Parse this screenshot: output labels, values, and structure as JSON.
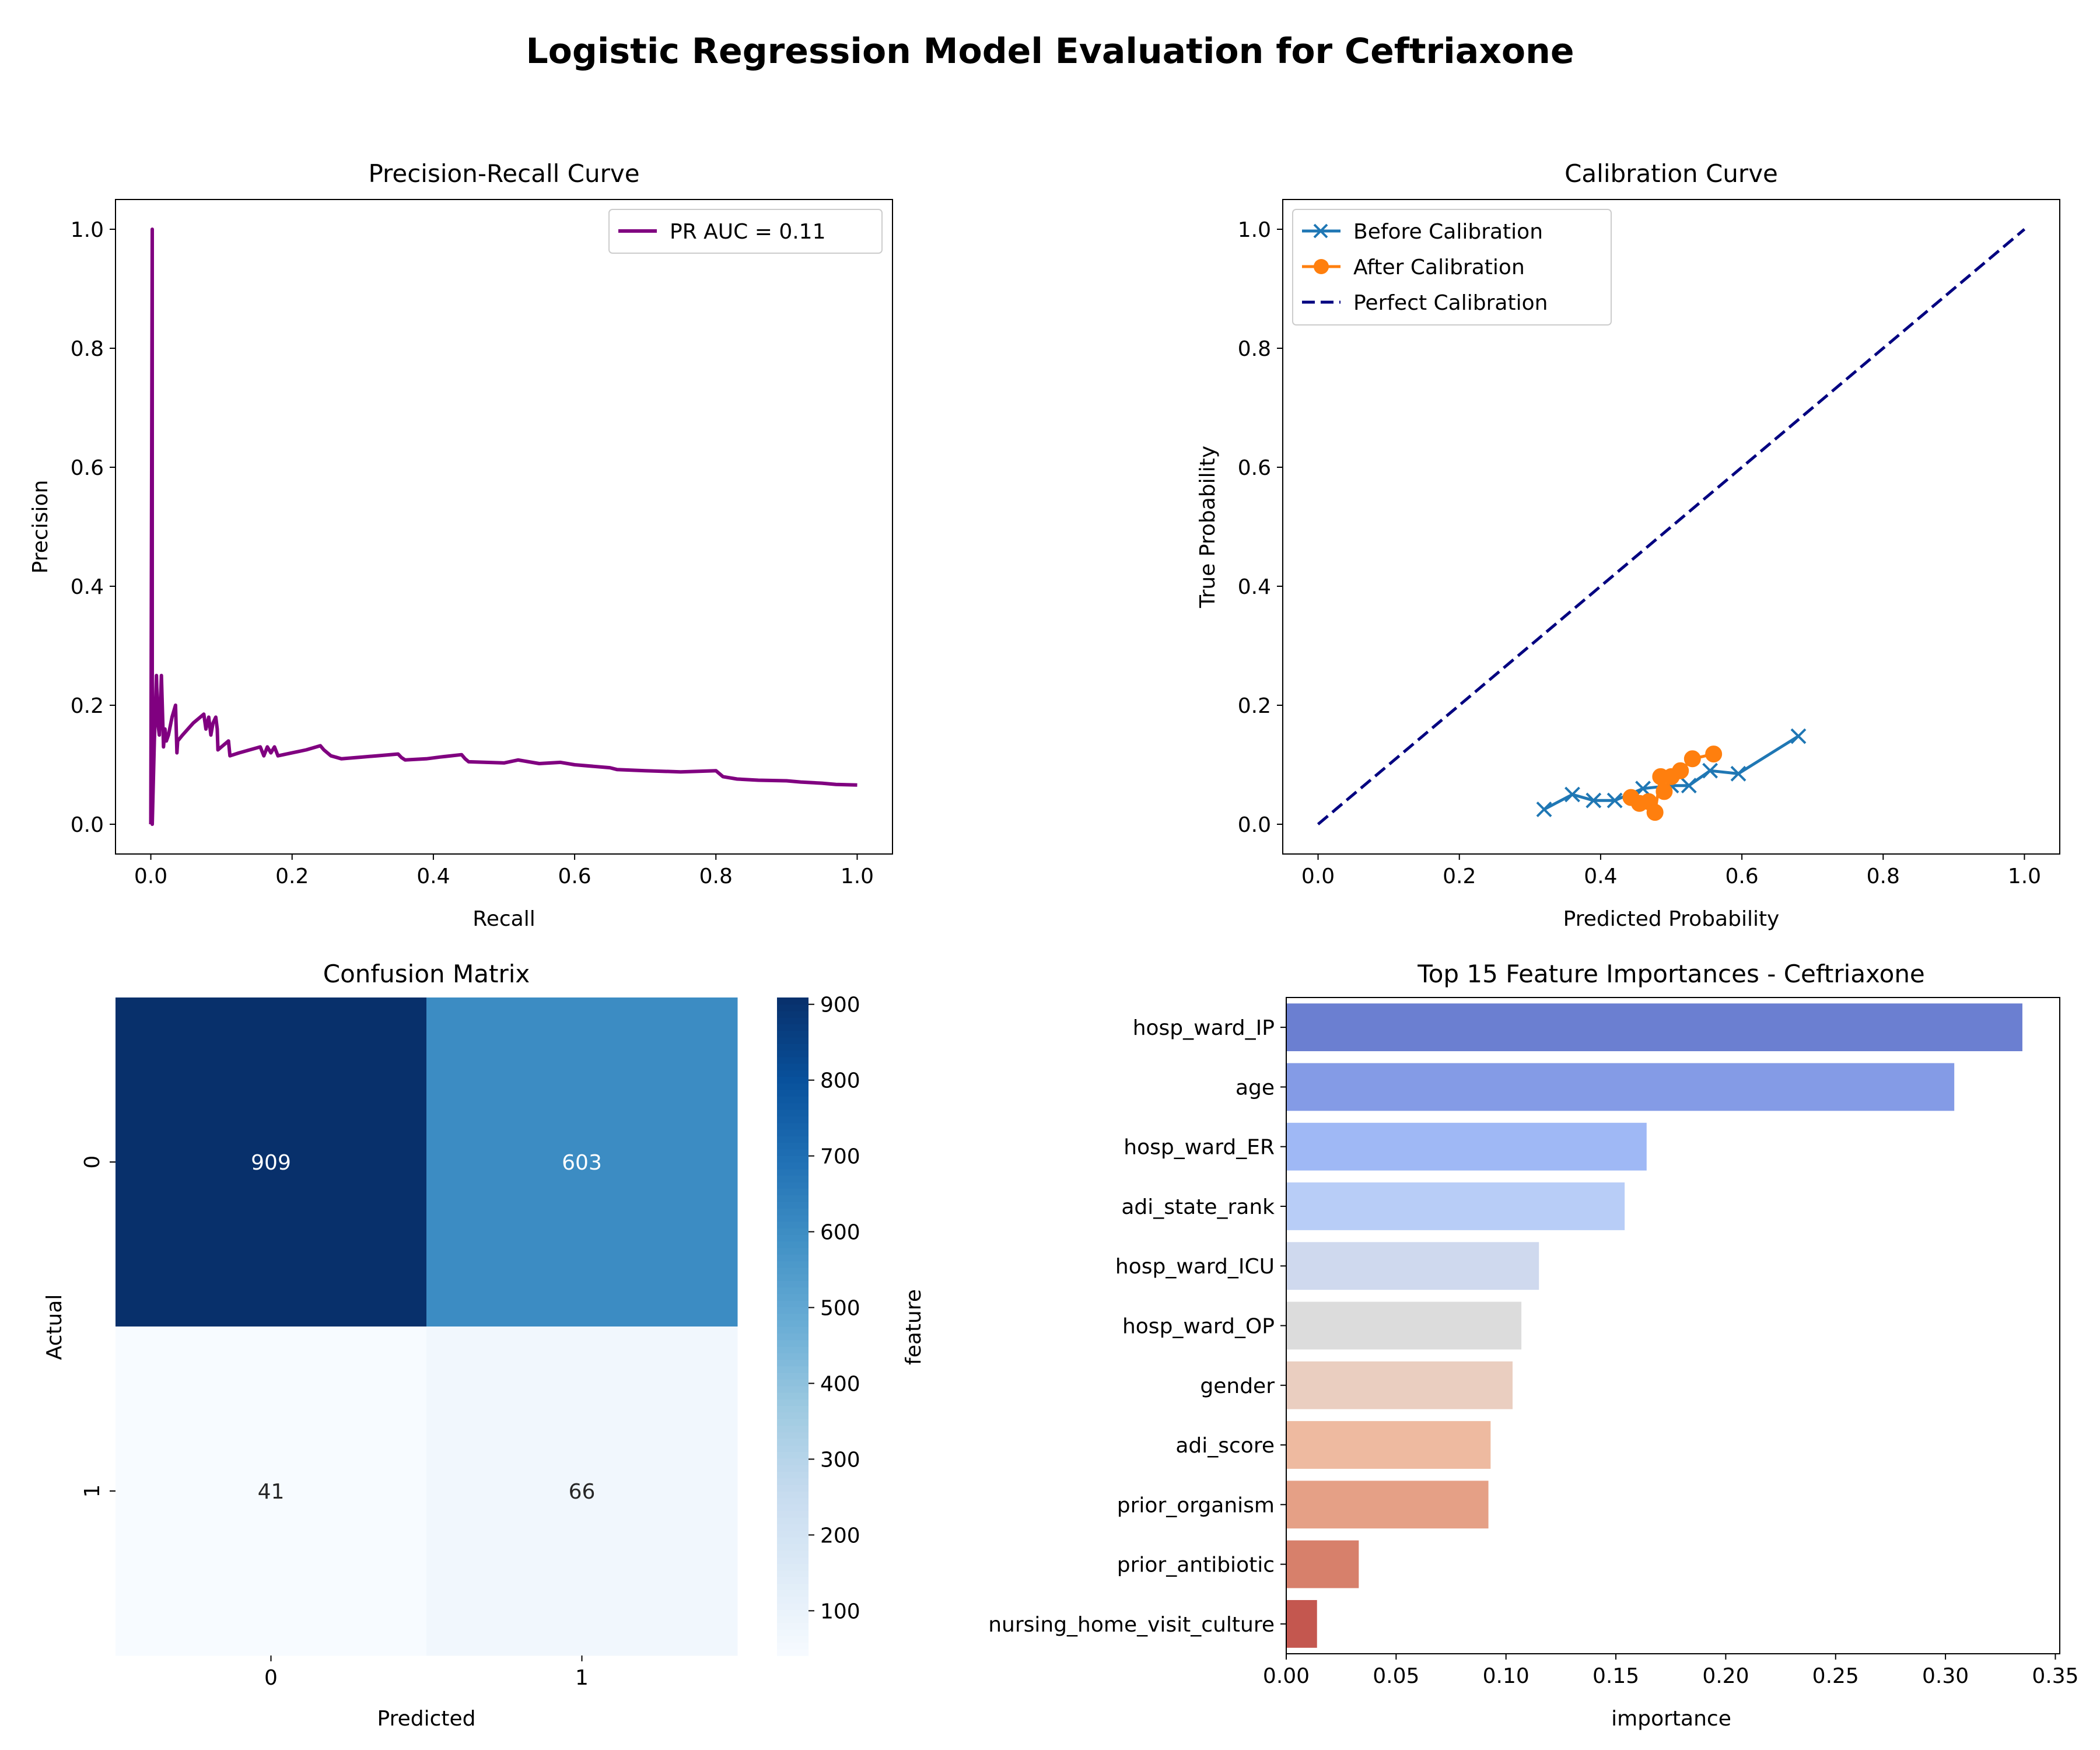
{
  "figure": {
    "title": "Logistic Regression Model Evaluation for Ceftriaxone"
  },
  "chart_data": [
    {
      "type": "line",
      "title": "Precision-Recall Curve",
      "xlabel": "Recall",
      "ylabel": "Precision",
      "xlim": [
        -0.05,
        1.05
      ],
      "ylim": [
        -0.05,
        1.05
      ],
      "xticks": [
        "0.0",
        "0.2",
        "0.4",
        "0.6",
        "0.8",
        "1.0"
      ],
      "yticks": [
        "0.0",
        "0.2",
        "0.4",
        "0.6",
        "0.8",
        "1.0"
      ],
      "legend": "top-right",
      "color": "#800080",
      "series": [
        {
          "name": "PR AUC = 0.11",
          "x": [
            0.0,
            0.0,
            0.002,
            0.002,
            0.005,
            0.008,
            0.01,
            0.012,
            0.015,
            0.018,
            0.02,
            0.022,
            0.025,
            0.03,
            0.035,
            0.037,
            0.038,
            0.045,
            0.06,
            0.075,
            0.078,
            0.082,
            0.085,
            0.088,
            0.092,
            0.094,
            0.095,
            0.1,
            0.11,
            0.112,
            0.125,
            0.14,
            0.155,
            0.16,
            0.165,
            0.17,
            0.175,
            0.18,
            0.2,
            0.22,
            0.24,
            0.245,
            0.255,
            0.27,
            0.3,
            0.32,
            0.35,
            0.355,
            0.36,
            0.39,
            0.41,
            0.44,
            0.445,
            0.45,
            0.5,
            0.52,
            0.55,
            0.58,
            0.6,
            0.65,
            0.66,
            0.7,
            0.75,
            0.8,
            0.81,
            0.83,
            0.86,
            0.9,
            0.92,
            0.95,
            0.97,
            1.0
          ],
          "y": [
            0.0,
            0.0,
            1.0,
            0.0,
            0.14,
            0.25,
            0.17,
            0.15,
            0.25,
            0.13,
            0.16,
            0.14,
            0.15,
            0.18,
            0.2,
            0.12,
            0.14,
            0.15,
            0.17,
            0.185,
            0.16,
            0.18,
            0.15,
            0.17,
            0.18,
            0.16,
            0.125,
            0.13,
            0.14,
            0.115,
            0.12,
            0.125,
            0.13,
            0.115,
            0.13,
            0.12,
            0.13,
            0.115,
            0.12,
            0.125,
            0.132,
            0.125,
            0.115,
            0.11,
            0.113,
            0.115,
            0.118,
            0.112,
            0.108,
            0.11,
            0.113,
            0.117,
            0.11,
            0.105,
            0.103,
            0.108,
            0.102,
            0.104,
            0.1,
            0.095,
            0.092,
            0.09,
            0.088,
            0.09,
            0.08,
            0.076,
            0.074,
            0.073,
            0.071,
            0.069,
            0.067,
            0.066
          ]
        }
      ]
    },
    {
      "type": "line",
      "title": "Calibration Curve",
      "xlabel": "Predicted Probability",
      "ylabel": "True Probability",
      "xlim": [
        -0.05,
        1.05
      ],
      "ylim": [
        -0.05,
        1.05
      ],
      "xticks": [
        "0.0",
        "0.2",
        "0.4",
        "0.6",
        "0.8",
        "1.0"
      ],
      "yticks": [
        "0.0",
        "0.2",
        "0.4",
        "0.6",
        "0.8",
        "1.0"
      ],
      "legend": "top-left",
      "series": [
        {
          "name": "Before Calibration",
          "color": "#1f77b4",
          "marker": "x",
          "x": [
            0.32,
            0.36,
            0.39,
            0.42,
            0.46,
            0.5,
            0.525,
            0.555,
            0.595,
            0.68
          ],
          "y": [
            0.025,
            0.05,
            0.04,
            0.04,
            0.06,
            0.065,
            0.065,
            0.09,
            0.085,
            0.148
          ]
        },
        {
          "name": "After Calibration",
          "color": "#ff7f0e",
          "marker": "o",
          "x": [
            0.443,
            0.455,
            0.468,
            0.477,
            0.485,
            0.49,
            0.5,
            0.513,
            0.53,
            0.56
          ],
          "y": [
            0.045,
            0.035,
            0.038,
            0.02,
            0.08,
            0.055,
            0.08,
            0.09,
            0.11,
            0.118
          ]
        },
        {
          "name": "Perfect Calibration",
          "color": "#000080",
          "line": "dashed",
          "x": [
            0.0,
            1.0
          ],
          "y": [
            0.0,
            1.0
          ]
        }
      ]
    },
    {
      "type": "heatmap",
      "title": "Confusion Matrix",
      "xlabel": "Predicted",
      "ylabel": "Actual",
      "x_categories": [
        "0",
        "1"
      ],
      "y_categories": [
        "0",
        "1"
      ],
      "values": [
        [
          909,
          603
        ],
        [
          41,
          66
        ]
      ],
      "colormap": "Blues",
      "colorbar": {
        "label": "feature",
        "range": [
          41,
          909
        ],
        "ticks": [
          100,
          200,
          300,
          400,
          500,
          600,
          700,
          800,
          900
        ]
      }
    },
    {
      "type": "bar",
      "orientation": "horizontal",
      "title": "Top 15 Feature Importances - Ceftriaxone",
      "xlabel": "importance",
      "ylabel": "",
      "xlim": [
        0,
        0.352
      ],
      "xticks": [
        "0.00",
        "0.05",
        "0.10",
        "0.15",
        "0.20",
        "0.25",
        "0.30",
        "0.35"
      ],
      "categories": [
        "hosp_ward_IP",
        "age",
        "hosp_ward_ER",
        "adi_state_rank",
        "hosp_ward_ICU",
        "hosp_ward_OP",
        "gender",
        "adi_score",
        "prior_organism",
        "prior_antibiotic",
        "nursing_home_visit_culture"
      ],
      "values": [
        0.335,
        0.304,
        0.164,
        0.154,
        0.115,
        0.107,
        0.103,
        0.093,
        0.092,
        0.033,
        0.014
      ],
      "colors": [
        "#6b7fd1",
        "#849be6",
        "#9fb8f5",
        "#b8cdf7",
        "#cfd9ee",
        "#dcdcdc",
        "#eacec0",
        "#eebaa0",
        "#e5a086",
        "#d7806b",
        "#c4574f"
      ]
    }
  ]
}
